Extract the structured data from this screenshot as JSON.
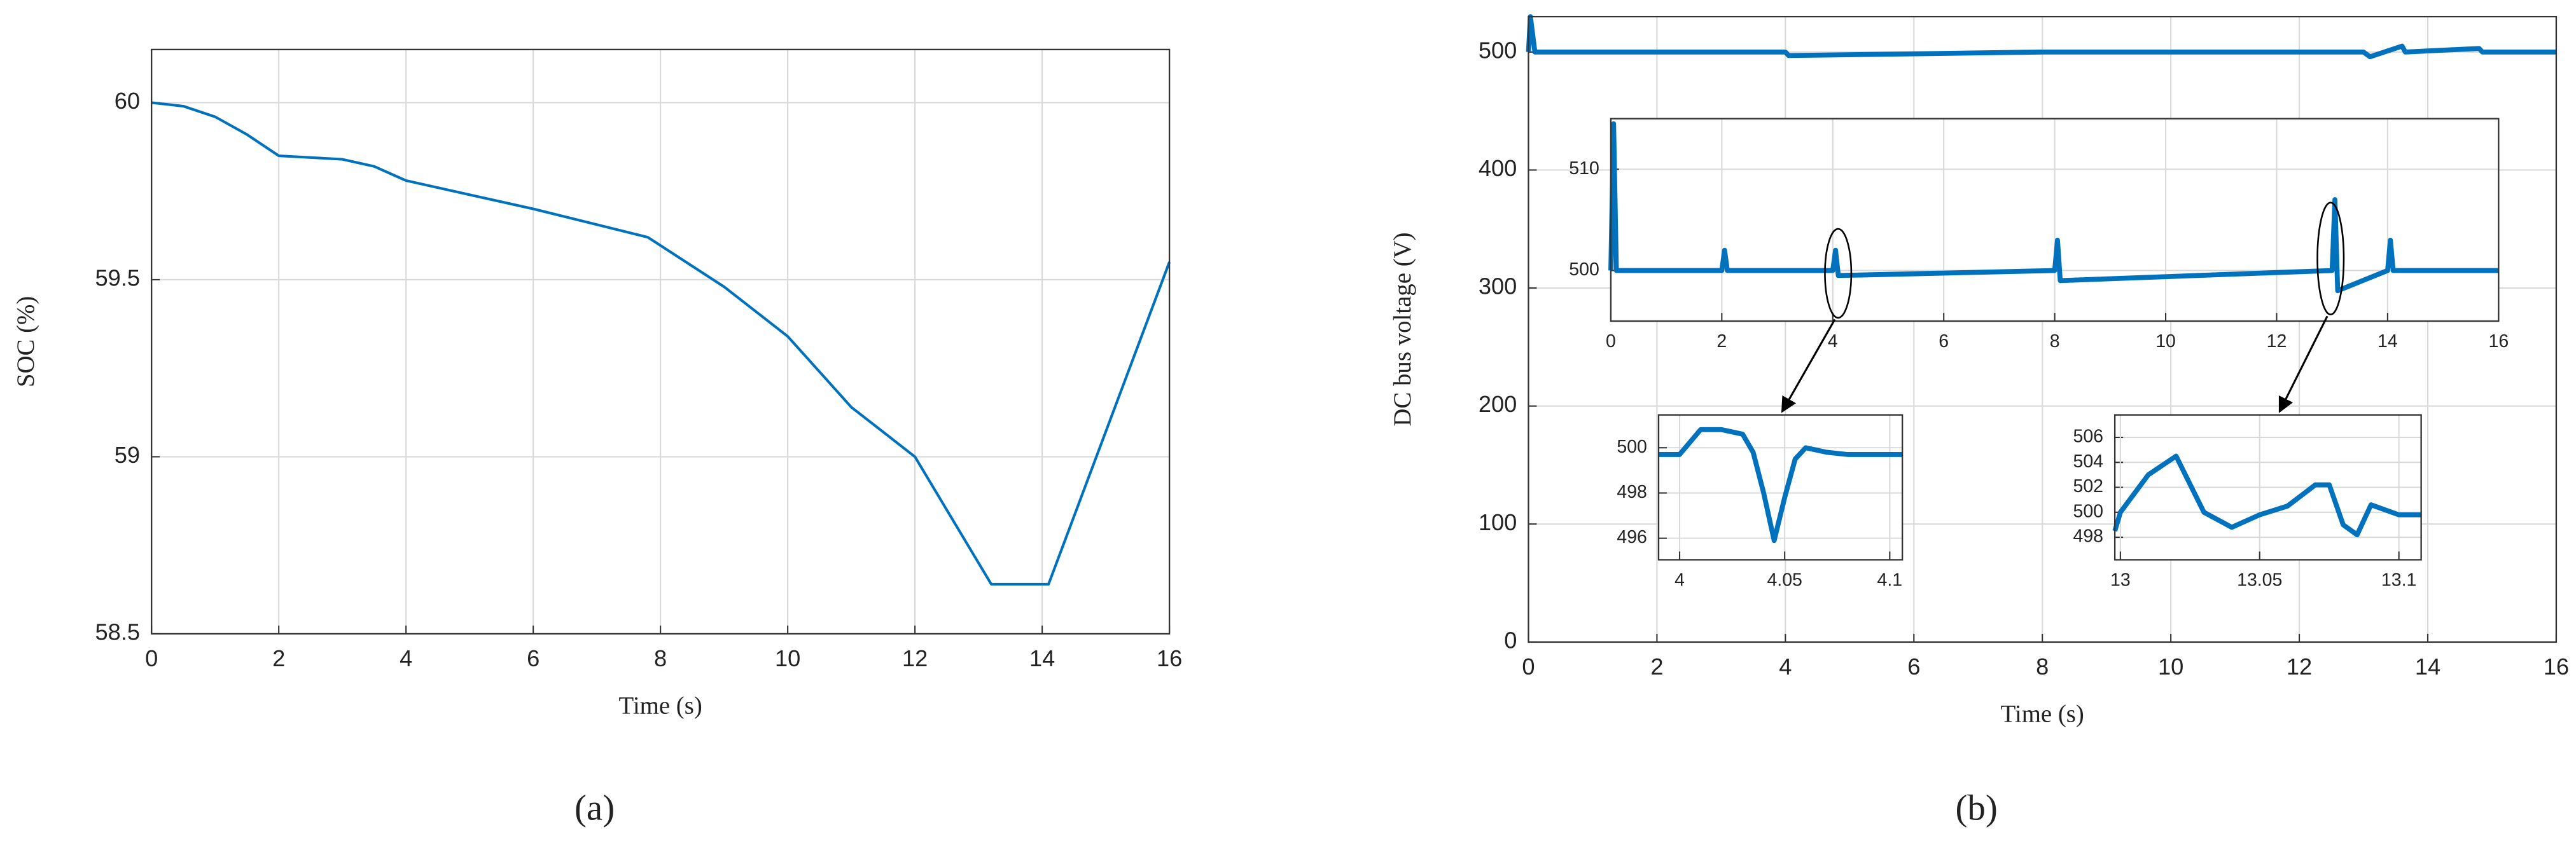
{
  "chart_data": [
    {
      "type": "line",
      "xlabel": "Time (s)",
      "ylabel": "SOC (%)",
      "caption": "(a)",
      "color": "#0072bd",
      "grid": true,
      "xlim": [
        0,
        16
      ],
      "ylim": [
        58.5,
        60.15
      ],
      "xticks": [
        0,
        2,
        4,
        6,
        8,
        10,
        12,
        14,
        16
      ],
      "yticks": [
        58.5,
        59,
        59.5,
        60
      ],
      "x": [
        0,
        0.5,
        1,
        1.5,
        2,
        3,
        3.5,
        4,
        6,
        7.8,
        9,
        10,
        11,
        12,
        13.2,
        14.1,
        16
      ],
      "values": [
        60,
        59.99,
        59.96,
        59.91,
        59.85,
        59.84,
        59.82,
        59.78,
        59.7,
        59.62,
        59.48,
        59.34,
        59.14,
        59.0,
        58.64,
        58.64,
        59.55
      ]
    },
    {
      "type": "line",
      "xlabel": "Time (s)",
      "ylabel": "DC bus voltage (V)",
      "caption": "(b)",
      "color": "#0072bd",
      "grid": true,
      "xlim": [
        0,
        16
      ],
      "ylim": [
        0,
        530
      ],
      "xticks": [
        0,
        2,
        4,
        6,
        8,
        10,
        12,
        14,
        16
      ],
      "yticks": [
        0,
        100,
        200,
        300,
        400,
        500
      ],
      "x": [
        0,
        0.03,
        0.1,
        4,
        4.05,
        8,
        13,
        13.1,
        13.6,
        13.65,
        14.8,
        14.85,
        16
      ],
      "values": [
        500,
        530,
        500,
        500,
        497,
        500,
        500,
        496,
        505,
        500,
        503,
        500,
        500
      ]
    },
    {
      "type": "line",
      "color": "#0072bd",
      "grid": true,
      "xlim": [
        0,
        16
      ],
      "ylim": [
        495,
        515
      ],
      "xticks": [
        0,
        2,
        4,
        6,
        8,
        10,
        12,
        14,
        16
      ],
      "yticks": [
        500,
        510
      ],
      "x": [
        0,
        0.05,
        0.1,
        2,
        2.05,
        2.1,
        4,
        4.05,
        4.1,
        8,
        8.05,
        8.1,
        13,
        13.05,
        13.1,
        14,
        14.05,
        14.1,
        16
      ],
      "values": [
        500,
        514.5,
        500,
        500,
        502,
        500,
        500,
        502,
        499.5,
        500,
        503,
        499,
        500,
        507,
        498,
        500,
        503,
        500,
        500
      ]
    },
    {
      "type": "line",
      "color": "#0072bd",
      "grid": true,
      "xlim": [
        3.99,
        4.106
      ],
      "ylim": [
        495.05,
        501.45
      ],
      "xticks": [
        4,
        4.05,
        4.1
      ],
      "yticks": [
        496,
        498,
        500
      ],
      "x": [
        3.99,
        4.0,
        4.01,
        4.02,
        4.03,
        4.035,
        4.04,
        4.045,
        4.05,
        4.055,
        4.06,
        4.07,
        4.08,
        4.106
      ],
      "values": [
        499.7,
        499.7,
        500.8,
        500.8,
        500.6,
        499.8,
        498,
        495.9,
        497.8,
        499.5,
        500.0,
        499.8,
        499.7,
        499.7
      ]
    },
    {
      "type": "line",
      "color": "#0072bd",
      "grid": true,
      "xlim": [
        12.998,
        13.108
      ],
      "ylim": [
        496.2,
        507.8
      ],
      "xticks": [
        13,
        13.05,
        13.1
      ],
      "yticks": [
        498,
        500,
        502,
        504,
        506
      ],
      "x": [
        12.998,
        13.0,
        13.01,
        13.02,
        13.03,
        13.04,
        13.05,
        13.06,
        13.07,
        13.075,
        13.08,
        13.085,
        13.09,
        13.1,
        13.108
      ],
      "values": [
        498.5,
        500,
        503,
        504.5,
        500,
        498.8,
        499.8,
        500.5,
        502.2,
        502.2,
        499,
        498.2,
        500.6,
        499.8,
        499.8
      ]
    }
  ]
}
